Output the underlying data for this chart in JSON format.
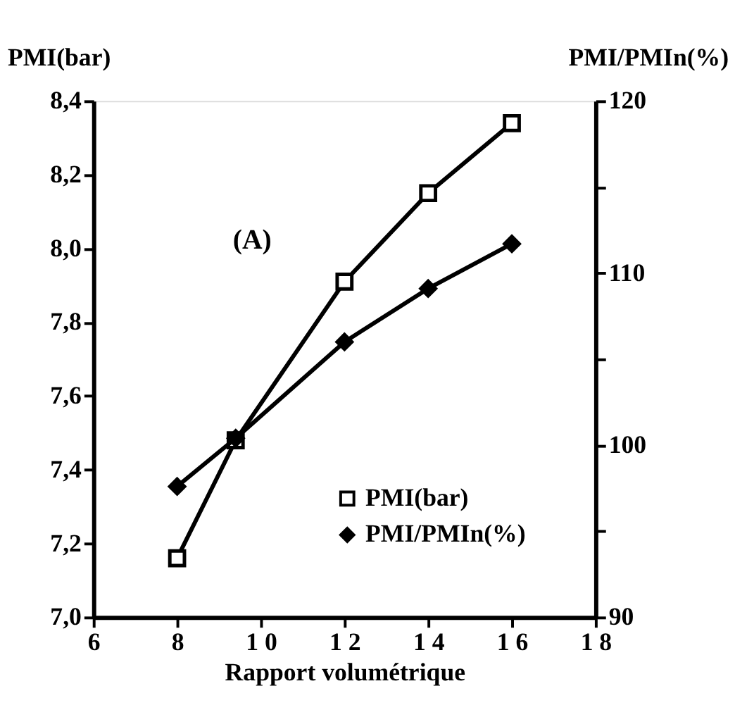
{
  "chart_data": {
    "type": "line",
    "xlabel": "Rapport volumétrique",
    "ylabel": "PMI(bar)",
    "y2label": "PMI/PMIn(%)",
    "x": [
      8,
      9.4,
      12,
      14,
      16
    ],
    "series": [
      {
        "name": "PMI(bar)",
        "color": "#000000",
        "marker": "square",
        "values": [
          7.16,
          7.48,
          7.91,
          8.15,
          8.34
        ]
      },
      {
        "name": "PMI/PMIn(%)",
        "color": "#000000",
        "marker": "diamond",
        "axis": "y2",
        "values": [
          97.6,
          100.4,
          106.0,
          109.1,
          111.7
        ]
      }
    ],
    "xlim": [
      6,
      18
    ],
    "xticks": [
      6,
      8,
      {
        "value": 10,
        "label": "1 0"
      },
      {
        "value": 12,
        "label": "1 2"
      },
      {
        "value": 14,
        "label": "1 4"
      },
      {
        "value": 16,
        "label": "1 6"
      },
      {
        "value": 18,
        "label": "1 8"
      }
    ],
    "ylim": [
      7.0,
      8.4
    ],
    "yticks": [
      {
        "value": 7.0,
        "label": "7,0"
      },
      {
        "value": 7.2,
        "label": "7,2"
      },
      {
        "value": 7.4,
        "label": "7,4"
      },
      {
        "value": 7.6,
        "label": "7,6"
      },
      {
        "value": 7.8,
        "label": "7,8"
      },
      {
        "value": 8.0,
        "label": "8,0"
      },
      {
        "value": 8.2,
        "label": "8,2"
      },
      {
        "value": 8.4,
        "label": "8,4"
      }
    ],
    "y2lim": [
      90,
      120
    ],
    "y2ticks": [
      90,
      {
        "value": 95,
        "label": null
      },
      100,
      {
        "value": 105,
        "label": null
      },
      110,
      {
        "value": 115,
        "label": null
      },
      120
    ],
    "annotations": [
      "(A)"
    ],
    "legend": "bottom right",
    "grid": false,
    "line_style": "solid"
  }
}
